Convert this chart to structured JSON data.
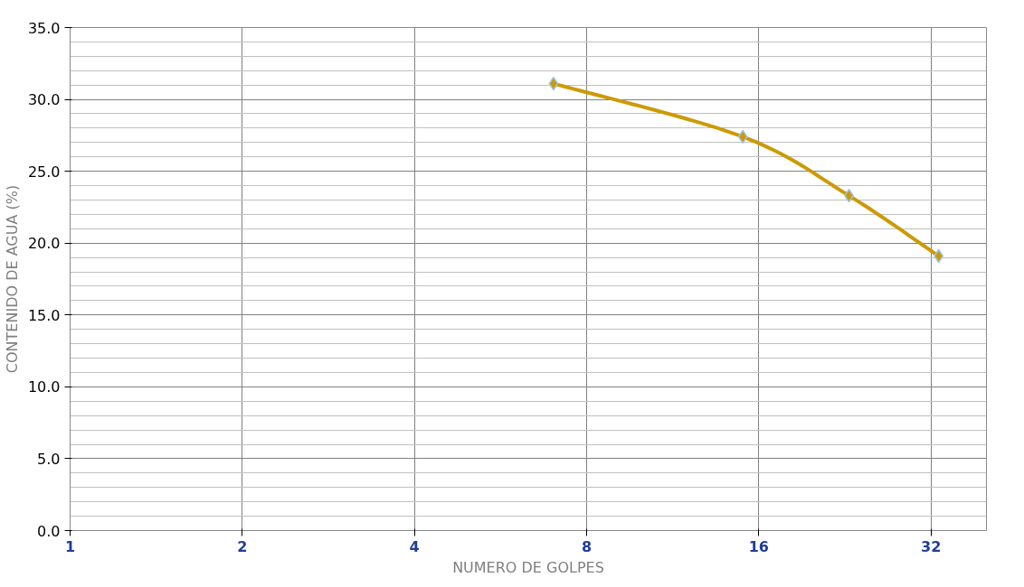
{
  "chart_data": {
    "type": "line",
    "xlabel": "NUMERO DE GOLPES",
    "ylabel": "CONTENIDO DE AGUA (%)",
    "log": "x",
    "xlim": [
      1,
      40
    ],
    "xticks": [
      1,
      2,
      4,
      8,
      16,
      32
    ],
    "ylim": [
      0,
      35
    ],
    "yticks": [
      {
        "value": 0,
        "label": "0.0"
      },
      {
        "value": 5,
        "label": "5.0"
      },
      {
        "value": 10,
        "label": "10.0"
      },
      {
        "value": 15,
        "label": "15.0"
      },
      {
        "value": 20,
        "label": "20.0"
      },
      {
        "value": 25,
        "label": "25.0"
      },
      {
        "value": 30,
        "label": "30.0"
      },
      {
        "value": 35,
        "label": "35.0"
      }
    ],
    "grid": true,
    "marker": "diamond",
    "line_style": "solid",
    "series": [
      {
        "color": "#cc9a06",
        "x": [
          7.0,
          15.0,
          23.0,
          33.0
        ],
        "values": [
          31.1,
          27.4,
          23.3,
          19.1
        ]
      }
    ]
  }
}
